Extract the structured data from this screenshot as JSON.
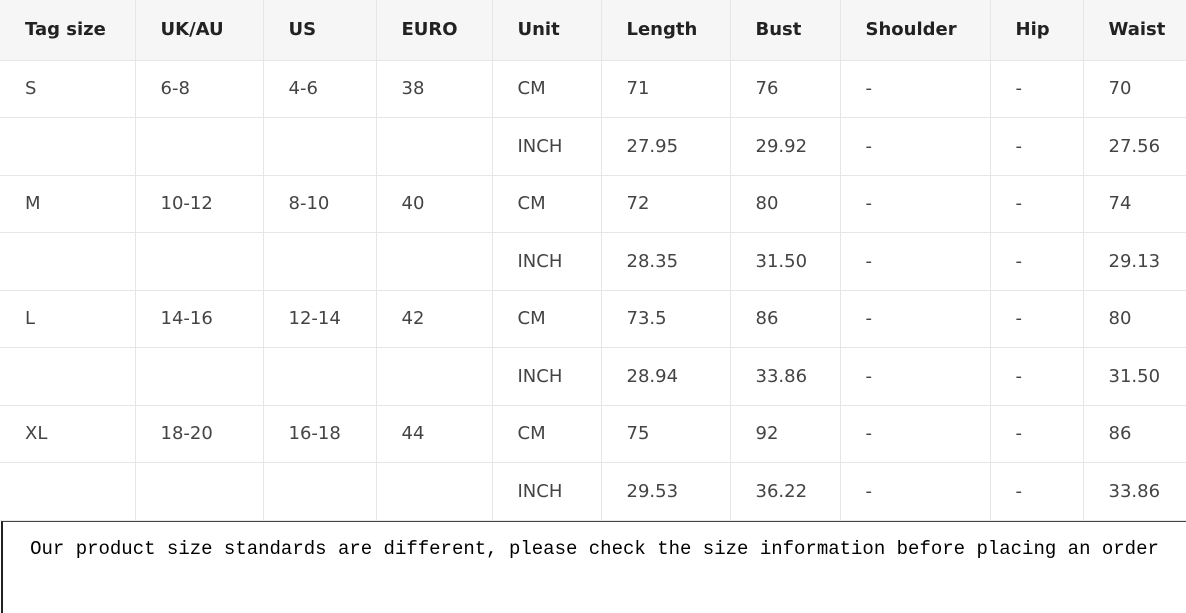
{
  "table": {
    "header": [
      "Tag size",
      "UK/AU",
      "US",
      "EURO",
      "Unit",
      "Length",
      "Bust",
      "Shoulder",
      "Hip",
      "Waist"
    ],
    "units": [
      "CM",
      "INCH"
    ],
    "sizes": [
      {
        "tag": "S",
        "uk": "6-8",
        "us": "4-6",
        "euro": "38",
        "cm": [
          "71",
          "76",
          "-",
          "-",
          "70"
        ],
        "inch": [
          "27.95",
          "29.92",
          "-",
          "-",
          "27.56"
        ]
      },
      {
        "tag": "M",
        "uk": "10-12",
        "us": "8-10",
        "euro": "40",
        "cm": [
          "72",
          "80",
          "-",
          "-",
          "74"
        ],
        "inch": [
          "28.35",
          "31.50",
          "-",
          "-",
          "29.13"
        ]
      },
      {
        "tag": "L",
        "uk": "14-16",
        "us": "12-14",
        "euro": "42",
        "cm": [
          "73.5",
          "86",
          "-",
          "-",
          "80"
        ],
        "inch": [
          "28.94",
          "33.86",
          "-",
          "-",
          "31.50"
        ]
      },
      {
        "tag": "XL",
        "uk": "18-20",
        "us": "16-18",
        "euro": "44",
        "cm": [
          "75",
          "92",
          "-",
          "-",
          "86"
        ],
        "inch": [
          "29.53",
          "36.22",
          "-",
          "-",
          "33.86"
        ]
      }
    ]
  },
  "note": "Our product size standards are different, please check the size information before placing an order"
}
